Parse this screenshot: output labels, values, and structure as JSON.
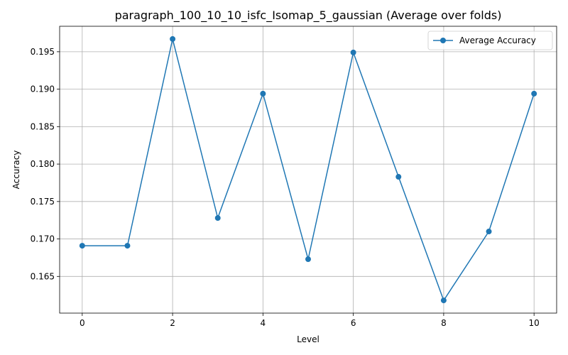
{
  "chart_data": {
    "type": "line",
    "title": "paragraph_100_10_10_isfc_Isomap_5_gaussian (Average over folds)",
    "xlabel": "Level",
    "ylabel": "Accuracy",
    "x": [
      0,
      1,
      2,
      3,
      4,
      5,
      6,
      7,
      8,
      9,
      10
    ],
    "series": [
      {
        "name": "Average Accuracy",
        "color": "#1f77b4",
        "marker": "circle",
        "values": [
          0.1691,
          0.1691,
          0.1967,
          0.1728,
          0.1894,
          0.1673,
          0.1949,
          0.1783,
          0.1618,
          0.171,
          0.1894
        ]
      }
    ],
    "xlim": [
      -0.5,
      10.5
    ],
    "ylim": [
      0.1601,
      0.1984
    ],
    "xticks": [
      0,
      2,
      4,
      6,
      8,
      10
    ],
    "xtick_labels": [
      "0",
      "2",
      "4",
      "6",
      "8",
      "10"
    ],
    "yticks": [
      0.165,
      0.17,
      0.175,
      0.18,
      0.185,
      0.19,
      0.195
    ],
    "ytick_labels": [
      "0.165",
      "0.170",
      "0.175",
      "0.180",
      "0.185",
      "0.190",
      "0.195"
    ],
    "grid": true,
    "legend": "top-right"
  }
}
